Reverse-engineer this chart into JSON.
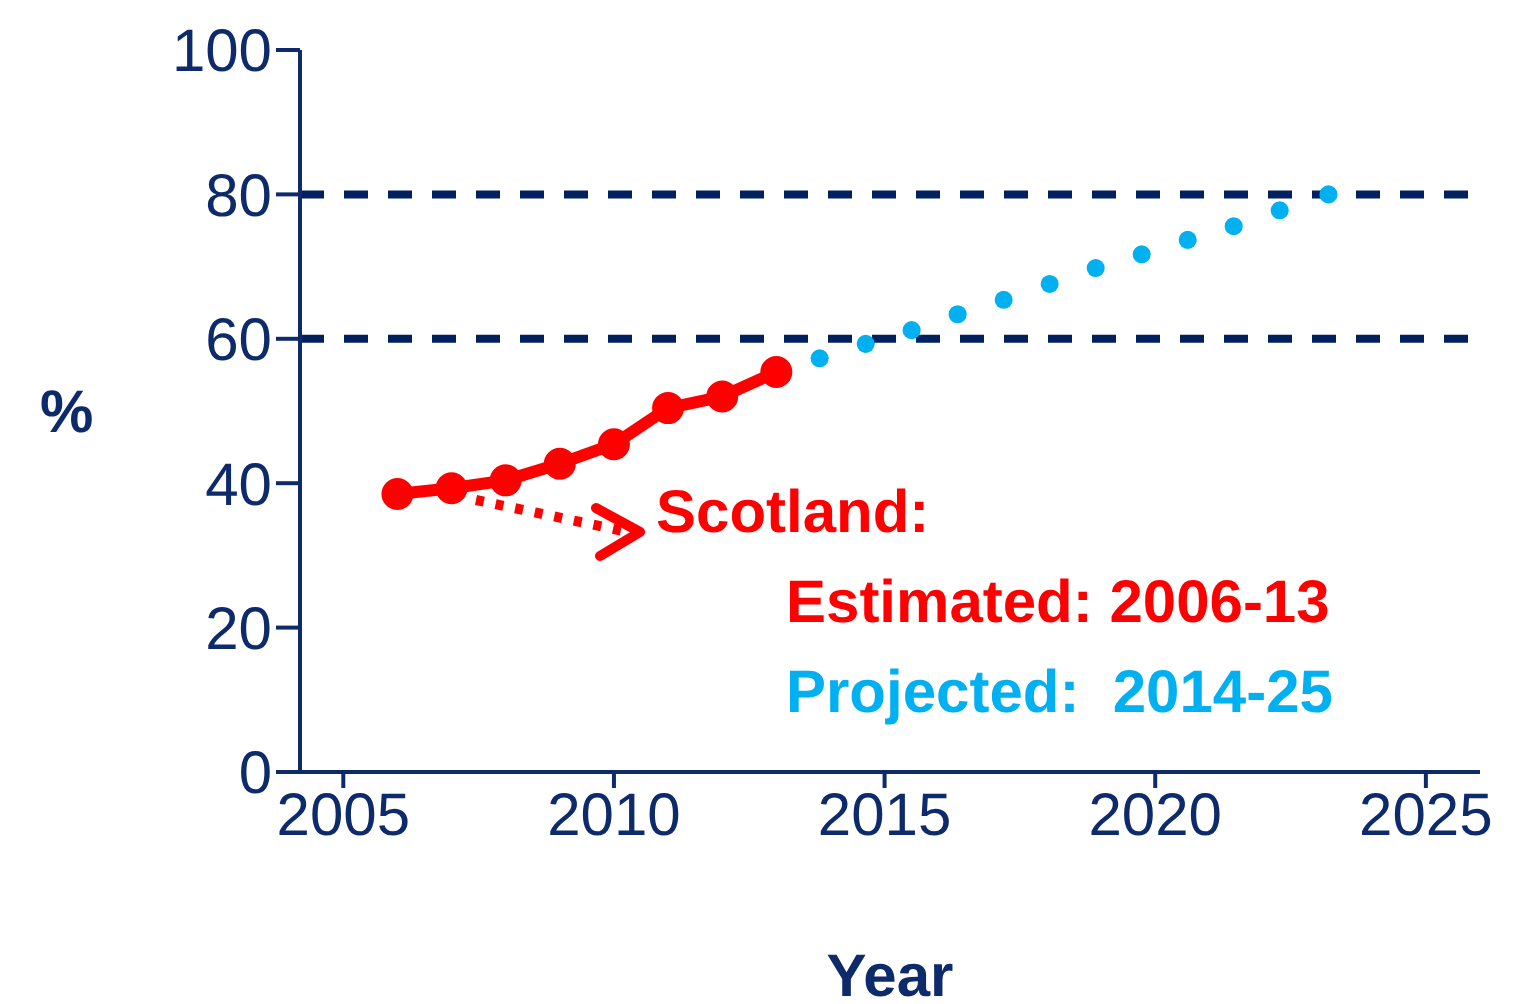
{
  "chart_data": {
    "type": "line",
    "xlabel": "Year",
    "ylabel": "%",
    "xlim": [
      2004.2,
      2026
    ],
    "xticks": [
      2005,
      2010,
      2015,
      2020,
      2025
    ],
    "ylim": [
      0,
      100
    ],
    "yticks": [
      0,
      20,
      40,
      60,
      80,
      100
    ],
    "grid": false,
    "marker": "circle",
    "series": [
      {
        "color": "#ff0000",
        "line_style": "solid",
        "x": [
          2006,
          2007,
          2008,
          2009,
          2010,
          2011,
          2012,
          2013
        ],
        "values": [
          38.5,
          39.3,
          40.4,
          42.7,
          45.4,
          50.4,
          52,
          55.4
        ]
      },
      {
        "type": "scatter",
        "color": "#00b0f0",
        "x": [
          2013.8,
          2014.65,
          2015.5,
          2016.35,
          2017.2,
          2018.05,
          2018.9,
          2019.75,
          2020.6,
          2021.45,
          2022.3,
          2023.2
        ],
        "values": [
          57.3,
          59.3,
          61.2,
          63.4,
          65.4,
          67.6,
          69.8,
          71.7,
          73.7,
          75.6,
          77.8,
          80
        ]
      }
    ],
    "ref_lines": [
      {
        "axis": "y",
        "value": 60,
        "color": "#002060",
        "line_style": "dashed"
      },
      {
        "axis": "y",
        "value": 80,
        "color": "#002060",
        "line_style": "dashed"
      }
    ],
    "annotations": [
      "Scotland:",
      "Estimated: 2006-13",
      "Projected:  2014-25"
    ]
  }
}
